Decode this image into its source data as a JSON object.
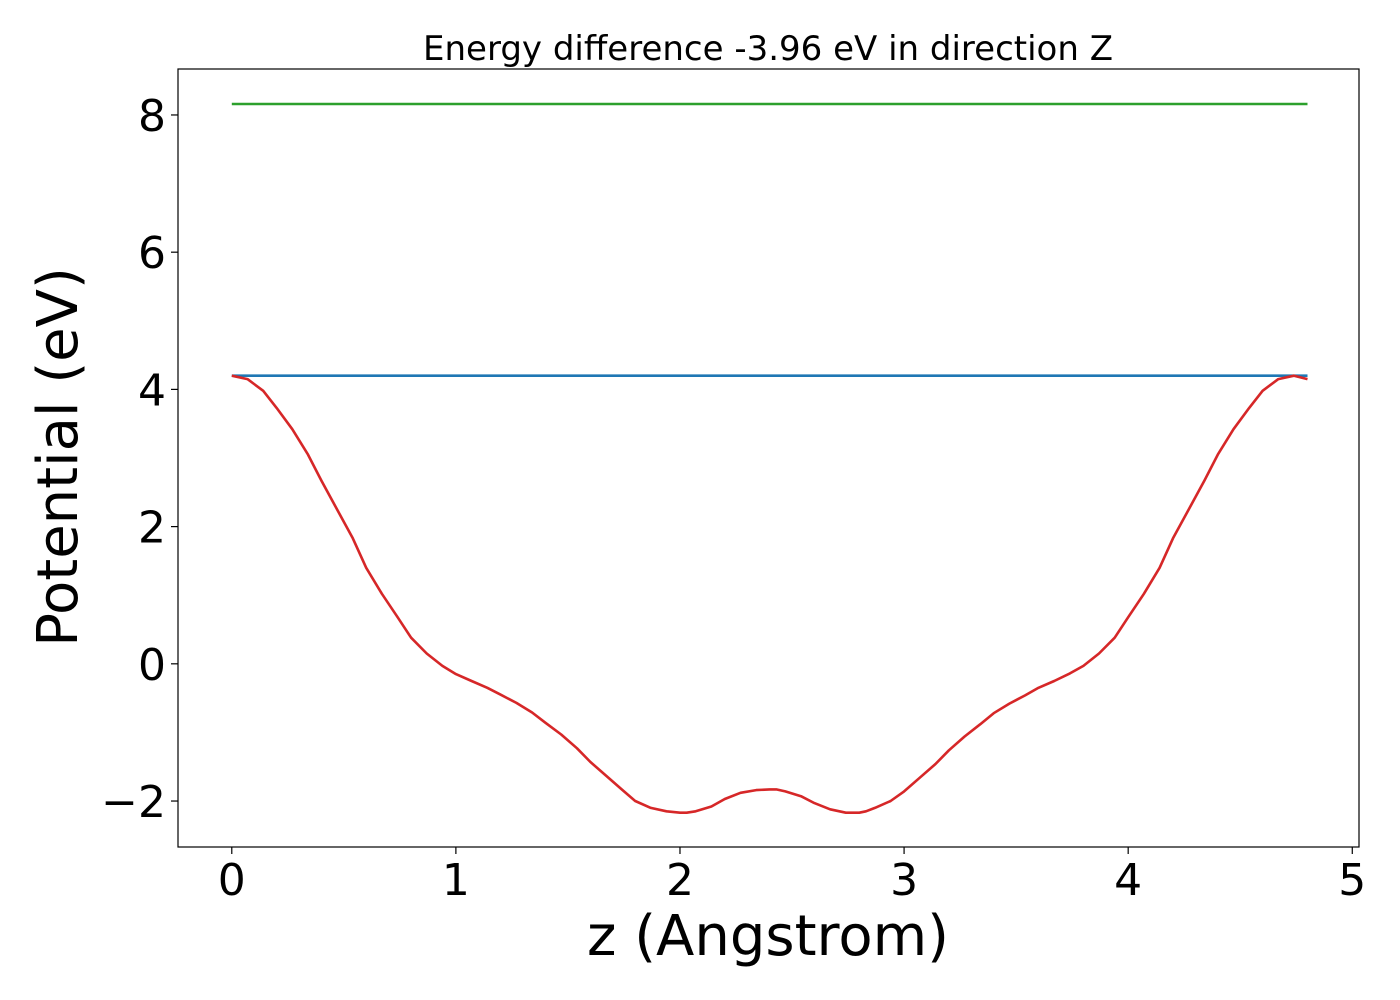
{
  "chart_data": {
    "type": "line",
    "title": "Energy difference -3.96 eV in direction Z",
    "xlabel": "z (Angstrom)",
    "ylabel": "Potential (eV)",
    "xlim": [
      -0.24,
      5.03
    ],
    "ylim": [
      -2.67,
      8.67
    ],
    "xticks": [
      0,
      1,
      2,
      3,
      4,
      5
    ],
    "yticks": [
      -2,
      0,
      2,
      4,
      6,
      8
    ],
    "xtick_labels": [
      "0",
      "1",
      "2",
      "3",
      "4",
      "5"
    ],
    "ytick_labels": [
      "−2",
      "0",
      "2",
      "4",
      "6",
      "8"
    ],
    "grid": false,
    "legend": "none",
    "series": [
      {
        "color": "#2ca02c",
        "x": [
          0,
          4.8
        ],
        "y": [
          8.16,
          8.16
        ]
      },
      {
        "color": "#1f77b4",
        "x": [
          0,
          4.8
        ],
        "y": [
          4.2,
          4.2
        ]
      },
      {
        "color": "#d62728",
        "x": [
          0,
          0.07,
          0.14,
          0.2,
          0.27,
          0.34,
          0.4,
          0.47,
          0.54,
          0.6,
          0.67,
          0.74,
          0.8,
          0.87,
          0.94,
          1.0,
          1.07,
          1.14,
          1.2,
          1.27,
          1.34,
          1.4,
          1.47,
          1.54,
          1.6,
          1.67,
          1.74,
          1.8,
          1.87,
          1.94,
          2.0,
          2.03,
          2.07,
          2.14,
          2.2,
          2.27,
          2.34,
          2.4,
          2.43,
          2.47,
          2.54,
          2.6,
          2.67,
          2.74,
          2.8,
          2.83,
          2.87,
          2.94,
          3.0,
          3.07,
          3.14,
          3.2,
          3.27,
          3.34,
          3.4,
          3.47,
          3.54,
          3.6,
          3.67,
          3.74,
          3.8,
          3.87,
          3.94,
          4.0,
          4.07,
          4.14,
          4.2,
          4.27,
          4.34,
          4.4,
          4.47,
          4.54,
          4.6,
          4.67,
          4.74,
          4.8
        ],
        "y": [
          4.2,
          4.15,
          3.98,
          3.73,
          3.42,
          3.05,
          2.67,
          2.25,
          1.83,
          1.4,
          1.02,
          0.68,
          0.38,
          0.15,
          -0.03,
          -0.15,
          -0.25,
          -0.35,
          -0.45,
          -0.57,
          -0.71,
          -0.86,
          -1.03,
          -1.23,
          -1.43,
          -1.63,
          -1.83,
          -2.0,
          -2.1,
          -2.15,
          -2.17,
          -2.17,
          -2.15,
          -2.08,
          -1.97,
          -1.88,
          -1.84,
          -1.83,
          -1.83,
          -1.86,
          -1.93,
          -2.03,
          -2.12,
          -2.17,
          -2.17,
          -2.15,
          -2.1,
          -2.0,
          -1.86,
          -1.66,
          -1.46,
          -1.26,
          -1.06,
          -0.88,
          -0.72,
          -0.58,
          -0.46,
          -0.35,
          -0.25,
          -0.14,
          -0.03,
          0.15,
          0.38,
          0.68,
          1.02,
          1.4,
          1.83,
          2.25,
          2.67,
          3.05,
          3.42,
          3.73,
          3.98,
          4.15,
          4.2,
          4.15
        ]
      }
    ]
  }
}
